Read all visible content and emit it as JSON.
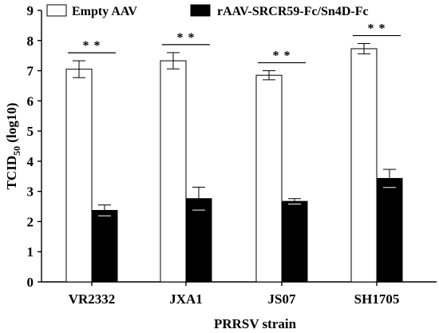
{
  "chart_data": {
    "type": "bar",
    "xlabel": "PRRSV strain",
    "ylabel": "TCID",
    "ylabel_sub": "50",
    "ylabel_suffix": " (log10)",
    "ylim": [
      0,
      9
    ],
    "yticks": [
      0,
      1,
      2,
      3,
      4,
      5,
      6,
      7,
      8,
      9
    ],
    "categories": [
      "VR2332",
      "JXA1",
      "JS07",
      "SH1705"
    ],
    "series": [
      {
        "name": "Empty AAV",
        "color": "#ffffff",
        "values": [
          7.05,
          7.33,
          6.85,
          7.73
        ],
        "errors": [
          0.28,
          0.27,
          0.15,
          0.17
        ]
      },
      {
        "name": "rAAV-SRCR59-Fc/Sn4D-Fc",
        "color": "#000000",
        "values": [
          2.37,
          2.76,
          2.67,
          3.43
        ],
        "errors": [
          0.18,
          0.38,
          0.09,
          0.3
        ]
      }
    ],
    "significance": [
      "* *",
      "* *",
      "* *",
      "* *"
    ],
    "grid": false,
    "legend_position": "top"
  }
}
